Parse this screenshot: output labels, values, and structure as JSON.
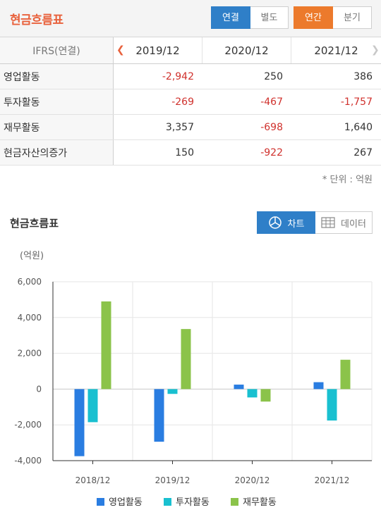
{
  "header": {
    "title": "현금흐름표",
    "scope_tabs": [
      {
        "label": "연결",
        "active": true
      },
      {
        "label": "별도",
        "active": false
      }
    ],
    "period_tabs": [
      {
        "label": "연간",
        "active": true
      },
      {
        "label": "분기",
        "active": false
      }
    ]
  },
  "table": {
    "corner": "IFRS(연결)",
    "periods": [
      "2019/12",
      "2020/12",
      "2021/12"
    ],
    "rows": [
      {
        "label": "영업활동",
        "values": [
          "-2,942",
          "250",
          "386"
        ]
      },
      {
        "label": "투자활동",
        "values": [
          "-269",
          "-467",
          "-1,757"
        ]
      },
      {
        "label": "재무활동",
        "values": [
          "3,357",
          "-698",
          "1,640"
        ]
      },
      {
        "label": "현금자산의증가",
        "values": [
          "150",
          "-922",
          "267"
        ]
      }
    ],
    "unit_note": "* 단위 : 억원"
  },
  "chart_section": {
    "title": "현금흐름표",
    "view_toggle": {
      "chart_label": "차트",
      "data_label": "데이터",
      "active": "chart"
    }
  },
  "chart_data": {
    "type": "bar",
    "ylabel": "(억원)",
    "ylim": [
      -4000,
      6000
    ],
    "yticks": [
      -4000,
      -2000,
      0,
      2000,
      4000,
      6000
    ],
    "ytick_labels": [
      "-4,000",
      "-2,000",
      "0",
      "2,000",
      "4,000",
      "6,000"
    ],
    "grid": true,
    "legend_position": "bottom",
    "categories": [
      "2018/12",
      "2019/12",
      "2020/12",
      "2021/12"
    ],
    "series": [
      {
        "name": "영업활동",
        "color": "#2a7de1",
        "values": [
          -3750,
          -2942,
          250,
          386
        ]
      },
      {
        "name": "투자활동",
        "color": "#19c0d0",
        "values": [
          -1850,
          -269,
          -467,
          -1757
        ]
      },
      {
        "name": "재무활동",
        "color": "#8bc34a",
        "values": [
          4900,
          3357,
          -698,
          1640
        ]
      }
    ]
  },
  "colors": {
    "accent_orange": "#e8613c",
    "active_blue": "#2f7fc8",
    "negative_red": "#d0312d"
  }
}
